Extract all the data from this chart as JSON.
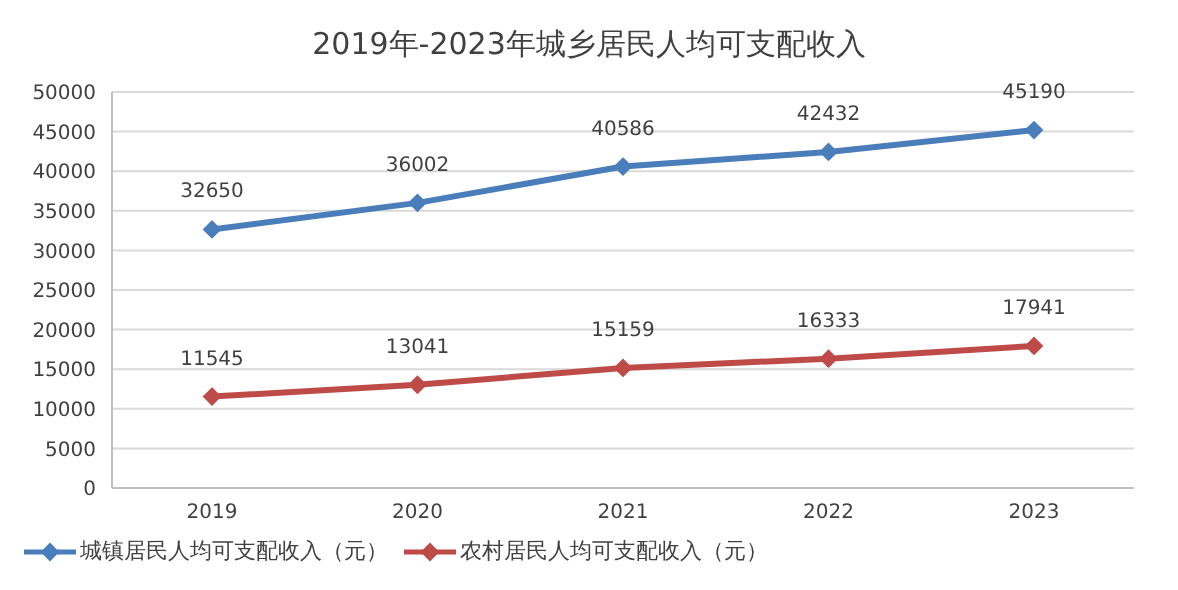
{
  "chart_data": {
    "type": "line",
    "title": "2019年-2023年城乡居民人均可支配收入",
    "categories": [
      "2019",
      "2020",
      "2021",
      "2022",
      "2023"
    ],
    "series": [
      {
        "name": "城镇居民人均可支配收入（元）",
        "color": "#4a7ebb",
        "values": [
          32650,
          36002,
          40586,
          42432,
          45190
        ]
      },
      {
        "name": "农村居民人均可支配收入（元）",
        "color": "#be4b48",
        "values": [
          11545,
          13041,
          15159,
          16333,
          17941
        ]
      }
    ],
    "ylim": [
      0,
      50000
    ],
    "yticks": [
      0,
      5000,
      10000,
      15000,
      20000,
      25000,
      30000,
      35000,
      40000,
      45000,
      50000
    ],
    "grid": "y",
    "legend": "bottom",
    "marker": "diamond",
    "data_labels": true
  }
}
